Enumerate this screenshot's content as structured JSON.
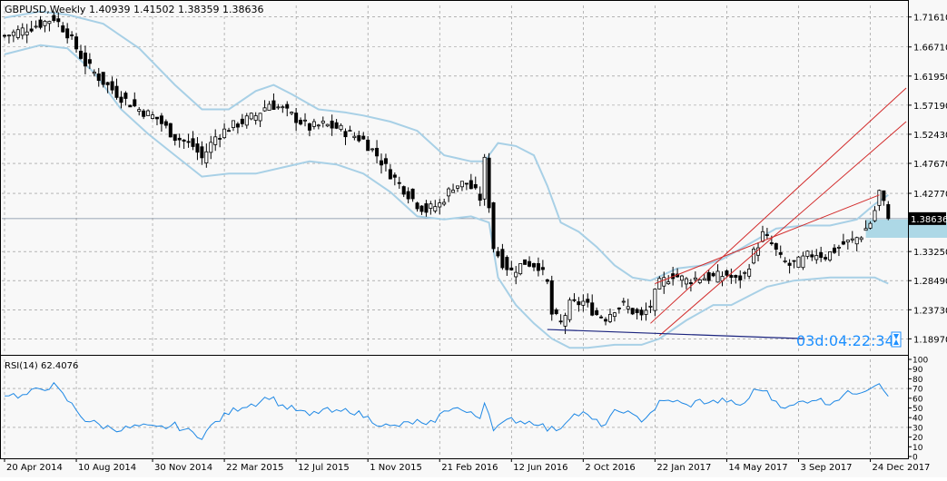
{
  "header": {
    "symbol_label": "GBPUSD,Weekly",
    "ohlc_label": "1.40939 1.41502 1.38359 1.38636"
  },
  "timer": {
    "label": "03d:04:22:34"
  },
  "rsi": {
    "label": "RSI(14) 62.4076",
    "levels": [
      100,
      90,
      80,
      70,
      60,
      50,
      40,
      30,
      20,
      10,
      0
    ]
  },
  "colors": {
    "background": "#f8f8f8",
    "grid": "#8c8c8c",
    "bull_candle": "#ffffff",
    "bear_candle": "#000000",
    "bollinger": "#a8d0e6",
    "channel": "#d22a2a",
    "support_line": "#1a237e",
    "rsi_line": "#1e88e5",
    "price_marker": "#000000",
    "rect_zone": "#add8e6",
    "timer": "#1e90ff"
  },
  "chart_data": [
    {
      "type": "candlestick",
      "title": "GBPUSD,Weekly",
      "ylim": [
        1.165,
        1.735
      ],
      "y_ticks": [
        "1.71610",
        "1.66710",
        "1.61950",
        "1.57190",
        "1.52430",
        "1.47670",
        "1.42770",
        "1.38636",
        "1.33250",
        "1.28490",
        "1.23730",
        "1.18970"
      ],
      "x_ticks": [
        "20 Apr 2014",
        "10 Aug 2014",
        "30 Nov 2014",
        "22 Mar 2015",
        "12 Jul 2015",
        "1 Nov 2015",
        "21 Feb 2016",
        "12 Jun 2016",
        "2 Oct 2016",
        "22 Jan 2017",
        "14 May 2017",
        "3 Sep 2017",
        "24 Dec 2017"
      ],
      "current_price": "1.38636",
      "last_bar": {
        "open": 1.40939,
        "high": 1.41502,
        "low": 1.38359,
        "close": 1.38636
      },
      "close_path": [
        [
          0,
          1.685
        ],
        [
          4,
          1.695
        ],
        [
          8,
          1.705
        ],
        [
          11,
          1.715
        ],
        [
          14,
          1.69
        ],
        [
          18,
          1.64
        ],
        [
          22,
          1.61
        ],
        [
          26,
          1.585
        ],
        [
          30,
          1.565
        ],
        [
          34,
          1.55
        ],
        [
          38,
          1.52
        ],
        [
          42,
          1.505
        ],
        [
          44,
          1.485
        ],
        [
          47,
          1.52
        ],
        [
          50,
          1.535
        ],
        [
          53,
          1.545
        ],
        [
          56,
          1.555
        ],
        [
          59,
          1.575
        ],
        [
          62,
          1.565
        ],
        [
          65,
          1.55
        ],
        [
          68,
          1.535
        ],
        [
          71,
          1.54
        ],
        [
          74,
          1.535
        ],
        [
          77,
          1.525
        ],
        [
          80,
          1.515
        ],
        [
          83,
          1.49
        ],
        [
          86,
          1.46
        ],
        [
          89,
          1.435
        ],
        [
          92,
          1.41
        ],
        [
          94,
          1.4
        ],
        [
          97,
          1.41
        ],
        [
          100,
          1.44
        ],
        [
          103,
          1.445
        ],
        [
          106,
          1.42
        ],
        [
          107,
          1.48
        ],
        [
          109,
          1.34
        ],
        [
          111,
          1.315
        ],
        [
          113,
          1.3
        ],
        [
          116,
          1.315
        ],
        [
          119,
          1.31
        ],
        [
          121,
          1.28
        ],
        [
          122,
          1.23
        ],
        [
          124,
          1.215
        ],
        [
          126,
          1.245
        ],
        [
          129,
          1.25
        ],
        [
          132,
          1.23
        ],
        [
          134,
          1.225
        ],
        [
          136,
          1.24
        ],
        [
          138,
          1.245
        ],
        [
          140,
          1.235
        ],
        [
          142,
          1.225
        ],
        [
          144,
          1.245
        ],
        [
          146,
          1.28
        ],
        [
          149,
          1.295
        ],
        [
          152,
          1.285
        ],
        [
          155,
          1.29
        ],
        [
          158,
          1.29
        ],
        [
          161,
          1.295
        ],
        [
          163,
          1.285
        ],
        [
          165,
          1.295
        ],
        [
          167,
          1.33
        ],
        [
          169,
          1.36
        ],
        [
          171,
          1.345
        ],
        [
          173,
          1.32
        ],
        [
          175,
          1.31
        ],
        [
          177,
          1.315
        ],
        [
          179,
          1.325
        ],
        [
          181,
          1.33
        ],
        [
          183,
          1.325
        ],
        [
          185,
          1.335
        ],
        [
          187,
          1.345
        ],
        [
          189,
          1.35
        ],
        [
          191,
          1.36
        ],
        [
          193,
          1.38
        ],
        [
          194,
          1.4
        ],
        [
          195,
          1.43
        ],
        [
          196,
          1.41
        ],
        [
          197,
          1.386
        ]
      ],
      "x_tick_bars": [
        0,
        16,
        33,
        49,
        65,
        81,
        97,
        113,
        129,
        145,
        161,
        177,
        193
      ],
      "bollinger_upper": [
        [
          0,
          1.715
        ],
        [
          8,
          1.725
        ],
        [
          14,
          1.72
        ],
        [
          22,
          1.705
        ],
        [
          30,
          1.665
        ],
        [
          38,
          1.605
        ],
        [
          44,
          1.565
        ],
        [
          50,
          1.565
        ],
        [
          56,
          1.595
        ],
        [
          60,
          1.605
        ],
        [
          64,
          1.59
        ],
        [
          70,
          1.565
        ],
        [
          76,
          1.56
        ],
        [
          80,
          1.555
        ],
        [
          86,
          1.545
        ],
        [
          92,
          1.53
        ],
        [
          98,
          1.49
        ],
        [
          104,
          1.48
        ],
        [
          107,
          1.48
        ],
        [
          110,
          1.51
        ],
        [
          114,
          1.505
        ],
        [
          118,
          1.49
        ],
        [
          121,
          1.44
        ],
        [
          124,
          1.38
        ],
        [
          128,
          1.365
        ],
        [
          132,
          1.34
        ],
        [
          136,
          1.31
        ],
        [
          140,
          1.29
        ],
        [
          144,
          1.285
        ],
        [
          150,
          1.305
        ],
        [
          156,
          1.31
        ],
        [
          160,
          1.32
        ],
        [
          166,
          1.345
        ],
        [
          172,
          1.37
        ],
        [
          178,
          1.375
        ],
        [
          184,
          1.375
        ],
        [
          190,
          1.385
        ],
        [
          194,
          1.41
        ],
        [
          197,
          1.425
        ]
      ],
      "bollinger_lower": [
        [
          0,
          1.655
        ],
        [
          8,
          1.67
        ],
        [
          14,
          1.665
        ],
        [
          20,
          1.625
        ],
        [
          26,
          1.565
        ],
        [
          32,
          1.525
        ],
        [
          38,
          1.49
        ],
        [
          44,
          1.455
        ],
        [
          50,
          1.46
        ],
        [
          56,
          1.46
        ],
        [
          62,
          1.47
        ],
        [
          68,
          1.48
        ],
        [
          74,
          1.475
        ],
        [
          80,
          1.46
        ],
        [
          86,
          1.43
        ],
        [
          92,
          1.39
        ],
        [
          98,
          1.385
        ],
        [
          104,
          1.39
        ],
        [
          108,
          1.38
        ],
        [
          110,
          1.29
        ],
        [
          114,
          1.245
        ],
        [
          118,
          1.215
        ],
        [
          122,
          1.19
        ],
        [
          126,
          1.175
        ],
        [
          130,
          1.175
        ],
        [
          136,
          1.18
        ],
        [
          142,
          1.18
        ],
        [
          146,
          1.19
        ],
        [
          152,
          1.22
        ],
        [
          158,
          1.245
        ],
        [
          162,
          1.245
        ],
        [
          166,
          1.26
        ],
        [
          170,
          1.275
        ],
        [
          176,
          1.285
        ],
        [
          184,
          1.29
        ],
        [
          190,
          1.29
        ],
        [
          194,
          1.29
        ],
        [
          197,
          1.28
        ]
      ],
      "channel_lines": [
        {
          "from": [
            144,
            1.215
          ],
          "to": [
            201,
            1.6
          ]
        },
        {
          "from": [
            146,
            1.195
          ],
          "to": [
            201,
            1.545
          ]
        },
        {
          "from": [
            145,
            1.28
          ],
          "to": [
            195,
            1.425
          ]
        }
      ],
      "support_line": {
        "from": [
          121,
          1.205
        ],
        "to": [
          178,
          1.19
        ]
      },
      "zone": {
        "x": [
          192,
          211
        ],
        "y": [
          1.355,
          1.385
        ]
      }
    },
    {
      "type": "line",
      "title": "RSI(14) 62.4076",
      "ylim": [
        0,
        100
      ],
      "y_ticks": [
        "100",
        "90",
        "80",
        "70",
        "60",
        "50",
        "40",
        "30",
        "20",
        "10",
        "0"
      ],
      "values": [
        [
          0,
          65
        ],
        [
          4,
          62
        ],
        [
          8,
          70
        ],
        [
          11,
          73
        ],
        [
          14,
          58
        ],
        [
          18,
          38
        ],
        [
          22,
          31
        ],
        [
          26,
          28
        ],
        [
          30,
          31
        ],
        [
          34,
          29
        ],
        [
          38,
          32
        ],
        [
          42,
          24
        ],
        [
          44,
          21
        ],
        [
          47,
          35
        ],
        [
          50,
          45
        ],
        [
          53,
          52
        ],
        [
          56,
          55
        ],
        [
          59,
          62
        ],
        [
          62,
          52
        ],
        [
          65,
          48
        ],
        [
          68,
          42
        ],
        [
          71,
          48
        ],
        [
          74,
          45
        ],
        [
          77,
          48
        ],
        [
          80,
          42
        ],
        [
          83,
          35
        ],
        [
          86,
          30
        ],
        [
          89,
          33
        ],
        [
          92,
          36
        ],
        [
          94,
          30
        ],
        [
          97,
          42
        ],
        [
          100,
          52
        ],
        [
          103,
          45
        ],
        [
          106,
          40
        ],
        [
          107,
          58
        ],
        [
          109,
          30
        ],
        [
          111,
          33
        ],
        [
          113,
          38
        ],
        [
          116,
          36
        ],
        [
          119,
          35
        ],
        [
          121,
          28
        ],
        [
          122,
          28
        ],
        [
          124,
          30
        ],
        [
          126,
          42
        ],
        [
          129,
          44
        ],
        [
          132,
          35
        ],
        [
          134,
          33
        ],
        [
          136,
          45
        ],
        [
          138,
          48
        ],
        [
          140,
          41
        ],
        [
          142,
          38
        ],
        [
          144,
          45
        ],
        [
          146,
          55
        ],
        [
          149,
          58
        ],
        [
          152,
          52
        ],
        [
          155,
          57
        ],
        [
          158,
          56
        ],
        [
          161,
          58
        ],
        [
          163,
          52
        ],
        [
          165,
          55
        ],
        [
          167,
          67
        ],
        [
          169,
          70
        ],
        [
          171,
          60
        ],
        [
          173,
          54
        ],
        [
          175,
          50
        ],
        [
          177,
          55
        ],
        [
          179,
          58
        ],
        [
          181,
          60
        ],
        [
          183,
          55
        ],
        [
          185,
          58
        ],
        [
          187,
          63
        ],
        [
          189,
          66
        ],
        [
          191,
          68
        ],
        [
          193,
          72
        ],
        [
          194,
          74
        ],
        [
          195,
          78
        ],
        [
          196,
          70
        ],
        [
          197,
          62
        ]
      ]
    }
  ]
}
